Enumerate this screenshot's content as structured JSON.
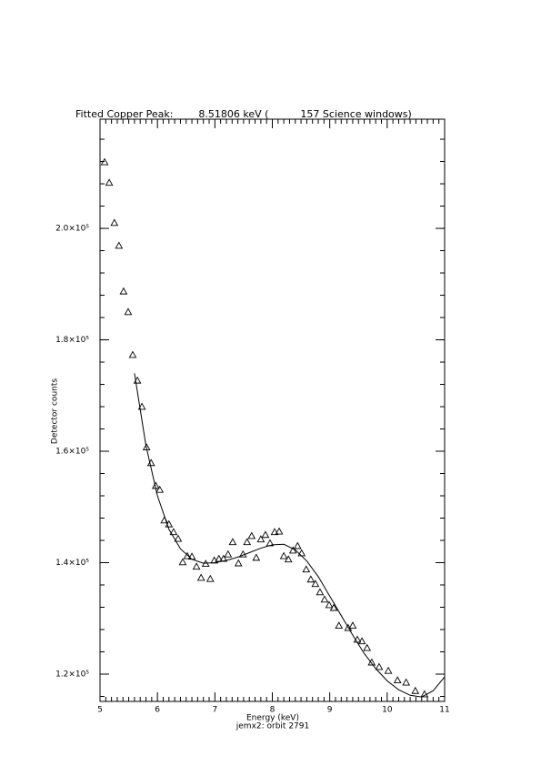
{
  "chart_data": {
    "type": "scatter",
    "title": "Fitted Copper Peak:        8.51806 keV (          157 Science windows)",
    "x_label": "Energy (keV)",
    "subtitle": "jemx2: orbit 2791",
    "y_label": "Detector counts",
    "xlim": [
      5,
      11
    ],
    "xticks": [
      5,
      6,
      7,
      8,
      9,
      10,
      11
    ],
    "ylim": [
      115100,
      219600
    ],
    "yticks": [
      {
        "value": 120000,
        "label": "1.2×10⁵"
      },
      {
        "value": 140000,
        "label": "1.4×10⁵"
      },
      {
        "value": 160000,
        "label": "1.6×10⁵"
      },
      {
        "value": 180000,
        "label": "1.8×10⁵"
      },
      {
        "value": 200000,
        "label": "2.0×10⁵"
      }
    ],
    "x_minor_ticks": 10,
    "y_minor_ticks": 5,
    "color": "#000000",
    "series": [
      {
        "type": "scatter",
        "x": [
          5.08,
          5.16,
          5.25,
          5.33,
          5.41,
          5.49,
          5.57,
          5.65,
          5.73,
          5.81,
          5.89,
          5.97,
          6.04,
          6.12,
          6.2,
          6.28,
          6.36,
          6.44,
          6.52,
          6.6,
          6.68,
          6.76,
          6.84,
          6.92,
          6.99,
          7.07,
          7.15,
          7.23,
          7.31,
          7.41,
          7.49,
          7.56,
          7.64,
          7.72,
          7.8,
          7.88,
          7.96,
          8.04,
          8.12,
          8.2,
          8.28,
          8.36,
          8.44,
          8.51,
          8.59,
          8.67,
          8.75,
          8.83,
          8.91,
          8.99,
          9.07,
          9.16,
          9.32,
          9.4,
          9.48,
          9.56,
          9.65,
          9.73,
          9.86,
          10.02,
          10.18,
          10.33,
          10.49,
          10.65
        ],
        "values": [
          211900,
          208200,
          201000,
          196900,
          188700,
          185000,
          177300,
          172700,
          168000,
          160700,
          157900,
          153800,
          153100,
          147600,
          146900,
          145500,
          144300,
          140100,
          141200,
          141100,
          139300,
          137300,
          139800,
          137100,
          140400,
          140700,
          140700,
          141500,
          143700,
          139900,
          141500,
          143700,
          144800,
          140900,
          144200,
          145000,
          143500,
          145500,
          145600,
          141200,
          140600,
          142200,
          143000,
          141700,
          138800,
          137000,
          136200,
          134700,
          133400,
          132400,
          131900,
          128700,
          128300,
          128700,
          126200,
          125900,
          124700,
          122100,
          121300,
          120600,
          118900,
          118500,
          117000,
          116400
        ]
      },
      {
        "type": "line",
        "x": [
          5.6,
          5.8,
          6.0,
          6.2,
          6.4,
          6.6,
          6.8,
          7.0,
          7.2,
          7.4,
          7.6,
          7.8,
          8.0,
          8.2,
          8.4,
          8.6,
          8.8,
          9.0,
          9.2,
          9.4,
          9.6,
          9.8,
          10.0,
          10.2,
          10.4,
          10.6,
          10.8,
          11.0
        ],
        "values": [
          174000,
          161000,
          152000,
          146000,
          142500,
          140600,
          139900,
          140000,
          140400,
          141000,
          141800,
          142600,
          143200,
          143300,
          142300,
          140300,
          137500,
          134000,
          130500,
          127000,
          123700,
          121000,
          118800,
          117200,
          116200,
          115900,
          117000,
          119500
        ]
      }
    ]
  }
}
